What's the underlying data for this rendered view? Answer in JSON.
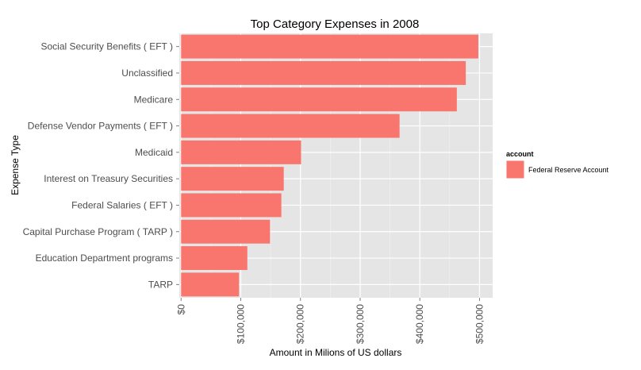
{
  "chart_data": {
    "type": "bar",
    "orientation": "horizontal",
    "title": "Top Category Expenses in 2008",
    "xlabel": "Amount in Milions of US dollars",
    "ylabel": "Expense Type",
    "categories": [
      "Social Security Benefits ( EFT )",
      "Unclassified",
      "Medicare",
      "Defense Vendor Payments ( EFT )",
      "Medicaid",
      "Interest on Treasury Securities",
      "Federal Salaries ( EFT )",
      "Capital Purchase Program ( TARP )",
      "Education Department programs",
      "TARP"
    ],
    "series": [
      {
        "name": "Federal Reserve Account",
        "values": [
          498000,
          477000,
          462000,
          366000,
          201000,
          172000,
          168000,
          149000,
          111000,
          97000
        ]
      }
    ],
    "xlim": [
      -3000,
      522000
    ],
    "xticks": [
      0,
      100000,
      200000,
      300000,
      400000,
      500000
    ],
    "xtick_labels": [
      "$0",
      "$100,000",
      "$200,000",
      "$300,000",
      "$400,000",
      "$500,000"
    ],
    "legend": {
      "title": "account",
      "placement": "right"
    },
    "grid": true,
    "colors": {
      "bar": "#f8766d",
      "panel": "#e5e5e5",
      "grid_major": "#ffffff",
      "grid_minor": "#f2f2f2",
      "axis_text": "#4d4d4d",
      "tick": "#7f7f7f"
    }
  }
}
